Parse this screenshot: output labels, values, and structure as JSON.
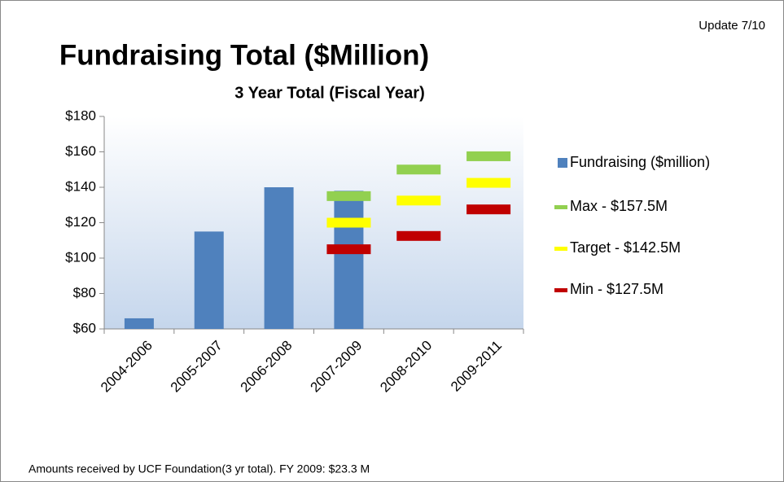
{
  "chart_data": {
    "type": "bar",
    "title": "Fundraising Total ($Million)",
    "subtitle": "3 Year Total (Fiscal Year)",
    "annotation": "Update 7/10",
    "footnote": "Amounts received by UCF Foundation(3 yr total). FY 2009: $23.3 M",
    "categories": [
      "2004-2006",
      "2005-2007",
      "2006-2008",
      "2007-2009",
      "2008-2010",
      "2009-2011"
    ],
    "series": [
      {
        "name": "Fundraising ($million)",
        "mark": "bar",
        "color": "#4f81bd",
        "values": [
          66,
          115,
          140,
          138,
          null,
          null
        ]
      },
      {
        "name": "Max - $157.5M",
        "mark": "dash",
        "color": "#92d050",
        "values": [
          null,
          null,
          null,
          135,
          150,
          157.5
        ]
      },
      {
        "name": "Target - $142.5M",
        "mark": "dash",
        "color": "#ffff00",
        "values": [
          null,
          null,
          null,
          120,
          132.5,
          142.5
        ]
      },
      {
        "name": "Min - $127.5M",
        "mark": "dash",
        "color": "#c00000",
        "values": [
          null,
          null,
          null,
          105,
          112.5,
          127.5
        ]
      }
    ],
    "ylim": [
      60,
      180
    ],
    "yticks": [
      {
        "value": 60,
        "label": "$60"
      },
      {
        "value": 80,
        "label": "$80"
      },
      {
        "value": 100,
        "label": "$100"
      },
      {
        "value": 120,
        "label": "$120"
      },
      {
        "value": 140,
        "label": "$140"
      },
      {
        "value": 160,
        "label": "$160"
      },
      {
        "value": 180,
        "label": "$180"
      }
    ],
    "legend": "right"
  }
}
